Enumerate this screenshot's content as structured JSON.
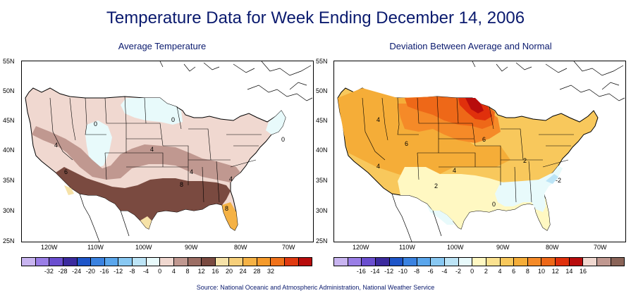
{
  "title": "Temperature Data for Week Ending December 14, 2006",
  "source": "Source:  National Oceanic and Atmospheric Administration, National Weather Service",
  "lat_labels": [
    "55N",
    "50N",
    "45N",
    "40N",
    "35N",
    "30N",
    "25N"
  ],
  "lon_labels": [
    "120W",
    "110W",
    "100W",
    "90W",
    "80W",
    "70W"
  ],
  "maps": [
    {
      "subtitle": "Average Temperature",
      "contour_labels": [
        "0",
        "0",
        "0",
        "4",
        "4",
        "4",
        "6",
        "8",
        "8",
        "4"
      ],
      "legend": {
        "colors": [
          "#c8b4f0",
          "#9a7ee6",
          "#6a4ecf",
          "#3b2a9e",
          "#1e55c8",
          "#3a82e0",
          "#5aa6ec",
          "#88c8f2",
          "#bce4f6",
          "#e8fafb",
          "#f0d8d0",
          "#c09890",
          "#9c6e64",
          "#7a4a40",
          "#f6e2a8",
          "#f6cf7a",
          "#f5b245",
          "#f59a2a",
          "#f0721a",
          "#e03a10",
          "#b80c0c"
        ],
        "labels": [
          "-32",
          "-28",
          "-24",
          "-20",
          "-16",
          "-12",
          "-8",
          "-4",
          "0",
          "4",
          "8",
          "12",
          "16",
          "20",
          "24",
          "28",
          "32"
        ]
      }
    },
    {
      "subtitle": "Deviation Between Average and Normal",
      "contour_labels": [
        "4",
        "6",
        "6",
        "4",
        "4",
        "2",
        "2",
        "0",
        "-2"
      ],
      "legend": {
        "colors": [
          "#c8b4f0",
          "#9a7ee6",
          "#6a4ecf",
          "#3b2a9e",
          "#1e55c8",
          "#3a82e0",
          "#5aa6ec",
          "#88c8f2",
          "#bce4f6",
          "#e8fafb",
          "#fff8c2",
          "#fbe290",
          "#f8c85c",
          "#f5ad38",
          "#f58a28",
          "#ee6818",
          "#e0300c",
          "#b80c0c",
          "#f0d8d0",
          "#c09890",
          "#8a6458"
        ],
        "labels": [
          "-16",
          "-14",
          "-12",
          "-10",
          "-8",
          "-6",
          "-4",
          "-2",
          "0",
          "2",
          "4",
          "6",
          "8",
          "10",
          "12",
          "14",
          "16"
        ]
      }
    }
  ]
}
